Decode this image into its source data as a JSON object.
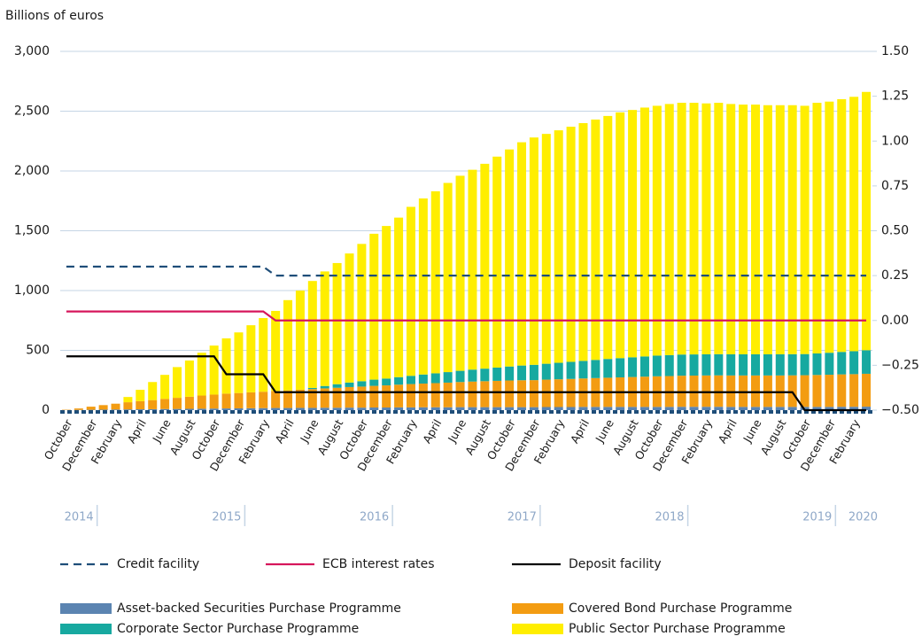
{
  "chart_data": {
    "type": "bar",
    "stacked": true,
    "y_label": "Billions of euros",
    "categories": [
      "October",
      null,
      "December",
      null,
      "February",
      null,
      "April",
      null,
      "June",
      null,
      "August",
      null,
      "October",
      null,
      "December",
      null,
      "February",
      null,
      "April",
      null,
      "June",
      null,
      "August",
      null,
      "October",
      null,
      "December",
      null,
      "February",
      null,
      "April",
      null,
      "June",
      null,
      "August",
      null,
      "October",
      null,
      "December",
      null,
      "February",
      null,
      "April",
      null,
      "June",
      null,
      "August",
      null,
      "October",
      null,
      "December",
      null,
      "February",
      null,
      "April",
      null,
      "June",
      null,
      "August",
      null,
      "October",
      null,
      "December",
      null,
      "February",
      null
    ],
    "year_labels": [
      "2014",
      "2015",
      "2016",
      "2017",
      "2018",
      "2019",
      "2020"
    ],
    "ylim": [
      0,
      3000
    ],
    "yticks": [
      0,
      500,
      {
        "value": 1000,
        "label": "1,000"
      },
      {
        "value": 1500,
        "label": "1,500"
      },
      {
        "value": 2000,
        "label": "2,000"
      },
      {
        "value": 2500,
        "label": "2,500"
      },
      {
        "value": 3000,
        "label": "3,000"
      }
    ],
    "y2lim": [
      -0.5,
      1.5
    ],
    "y2ticks": [
      {
        "value": -0.5,
        "label": "−0.50"
      },
      {
        "value": -0.25,
        "label": "−0.25"
      },
      {
        "value": 0,
        "label": "0.00"
      },
      0.25,
      {
        "value": 0.5,
        "label": "0.50"
      },
      0.75,
      {
        "value": 1,
        "label": "1.00"
      },
      1.25,
      {
        "value": 1.5,
        "label": "1.50"
      }
    ],
    "grid": true,
    "series": [
      {
        "name": "Credit facility",
        "type": "line",
        "axis": "y2",
        "dashed": true,
        "color": "#1f4e79",
        "values": [
          0.3,
          0.3,
          0.3,
          0.3,
          0.3,
          0.3,
          0.3,
          0.3,
          0.3,
          0.3,
          0.3,
          0.3,
          0.3,
          0.3,
          0.3,
          0.3,
          0.3,
          0.25,
          0.25,
          0.25,
          0.25,
          0.25,
          0.25,
          0.25,
          0.25,
          0.25,
          0.25,
          0.25,
          0.25,
          0.25,
          0.25,
          0.25,
          0.25,
          0.25,
          0.25,
          0.25,
          0.25,
          0.25,
          0.25,
          0.25,
          0.25,
          0.25,
          0.25,
          0.25,
          0.25,
          0.25,
          0.25,
          0.25,
          0.25,
          0.25,
          0.25,
          0.25,
          0.25,
          0.25,
          0.25,
          0.25,
          0.25,
          0.25,
          0.25,
          0.25,
          0.25,
          0.25,
          0.25,
          0.25,
          0.25,
          0.25
        ]
      },
      {
        "name": "ECB interest rates",
        "type": "line",
        "axis": "y2",
        "dashed": false,
        "color": "#d6165b",
        "values": [
          0.05,
          0.05,
          0.05,
          0.05,
          0.05,
          0.05,
          0.05,
          0.05,
          0.05,
          0.05,
          0.05,
          0.05,
          0.05,
          0.05,
          0.05,
          0.05,
          0.05,
          0,
          0,
          0,
          0,
          0,
          0,
          0,
          0,
          0,
          0,
          0,
          0,
          0,
          0,
          0,
          0,
          0,
          0,
          0,
          0,
          0,
          0,
          0,
          0,
          0,
          0,
          0,
          0,
          0,
          0,
          0,
          0,
          0,
          0,
          0,
          0,
          0,
          0,
          0,
          0,
          0,
          0,
          0,
          0,
          0,
          0,
          0,
          0,
          0
        ]
      },
      {
        "name": "Deposit facility",
        "type": "line",
        "axis": "y2",
        "dashed": false,
        "color": "#000000",
        "values": [
          -0.2,
          -0.2,
          -0.2,
          -0.2,
          -0.2,
          -0.2,
          -0.2,
          -0.2,
          -0.2,
          -0.2,
          -0.2,
          -0.2,
          -0.2,
          -0.3,
          -0.3,
          -0.3,
          -0.3,
          -0.4,
          -0.4,
          -0.4,
          -0.4,
          -0.4,
          -0.4,
          -0.4,
          -0.4,
          -0.4,
          -0.4,
          -0.4,
          -0.4,
          -0.4,
          -0.4,
          -0.4,
          -0.4,
          -0.4,
          -0.4,
          -0.4,
          -0.4,
          -0.4,
          -0.4,
          -0.4,
          -0.4,
          -0.4,
          -0.4,
          -0.4,
          -0.4,
          -0.4,
          -0.4,
          -0.4,
          -0.4,
          -0.4,
          -0.4,
          -0.4,
          -0.4,
          -0.4,
          -0.4,
          -0.4,
          -0.4,
          -0.4,
          -0.4,
          -0.4,
          -0.5,
          -0.5,
          -0.5,
          -0.5,
          -0.5,
          -0.5
        ]
      },
      {
        "name": "Asset-backed Securities Purchase Programme",
        "type": "bar",
        "color": "#5b84b1",
        "values": [
          1,
          2,
          3,
          4,
          5,
          6,
          7,
          8,
          9,
          10,
          11,
          12,
          13,
          14,
          15,
          16,
          17,
          18,
          18,
          19,
          19,
          20,
          20,
          21,
          21,
          22,
          22,
          23,
          23,
          24,
          24,
          24,
          25,
          25,
          25,
          25,
          25,
          25,
          25,
          26,
          26,
          26,
          27,
          27,
          27,
          27,
          27,
          27,
          27,
          27,
          28,
          28,
          28,
          28,
          27,
          27,
          27,
          27,
          27,
          27,
          27,
          27,
          27,
          28,
          28,
          29
        ]
      },
      {
        "name": "Covered Bond Purchase Programme",
        "type": "bar",
        "color": "#f39c12",
        "values": [
          3,
          12,
          26,
          38,
          49,
          60,
          68,
          76,
          85,
          93,
          101,
          110,
          117,
          124,
          128,
          133,
          137,
          142,
          147,
          152,
          157,
          162,
          167,
          172,
          176,
          181,
          185,
          190,
          195,
          198,
          202,
          206,
          210,
          214,
          217,
          220,
          223,
          225,
          226,
          229,
          232,
          235,
          238,
          241,
          244,
          247,
          250,
          253,
          256,
          258,
          260,
          261,
          262,
          263,
          263,
          263,
          263,
          263,
          263,
          264,
          265,
          267,
          269,
          271,
          273,
          275
        ]
      },
      {
        "name": "Corporate Sector Purchase Programme",
        "type": "bar",
        "color": "#17a9a0",
        "values": [
          0,
          0,
          0,
          0,
          0,
          0,
          0,
          0,
          0,
          0,
          0,
          0,
          0,
          0,
          0,
          0,
          0,
          0,
          0,
          0,
          10,
          20,
          30,
          38,
          45,
          52,
          57,
          63,
          69,
          76,
          82,
          88,
          94,
          100,
          105,
          111,
          117,
          123,
          128,
          133,
          138,
          143,
          147,
          152,
          157,
          161,
          165,
          169,
          173,
          175,
          177,
          177,
          177,
          177,
          177,
          177,
          177,
          177,
          177,
          177,
          177,
          180,
          184,
          188,
          192,
          197
        ]
      },
      {
        "name": "Public Sector Purchase Programme",
        "type": "bar",
        "color": "#ffee00",
        "values": [
          0,
          0,
          0,
          0,
          0,
          44,
          95,
          151,
          201,
          257,
          303,
          358,
          410,
          462,
          507,
          561,
          616,
          670,
          755,
          829,
          894,
          958,
          1013,
          1079,
          1148,
          1220,
          1276,
          1334,
          1413,
          1472,
          1522,
          1582,
          1631,
          1671,
          1713,
          1764,
          1815,
          1867,
          1901,
          1922,
          1944,
          1966,
          1988,
          2010,
          2032,
          2055,
          2068,
          2081,
          2089,
          2100,
          2105,
          2104,
          2098,
          2102,
          2093,
          2088,
          2088,
          2083,
          2083,
          2082,
          2076,
          2096,
          2100,
          2113,
          2127,
          2160
        ]
      }
    ]
  }
}
